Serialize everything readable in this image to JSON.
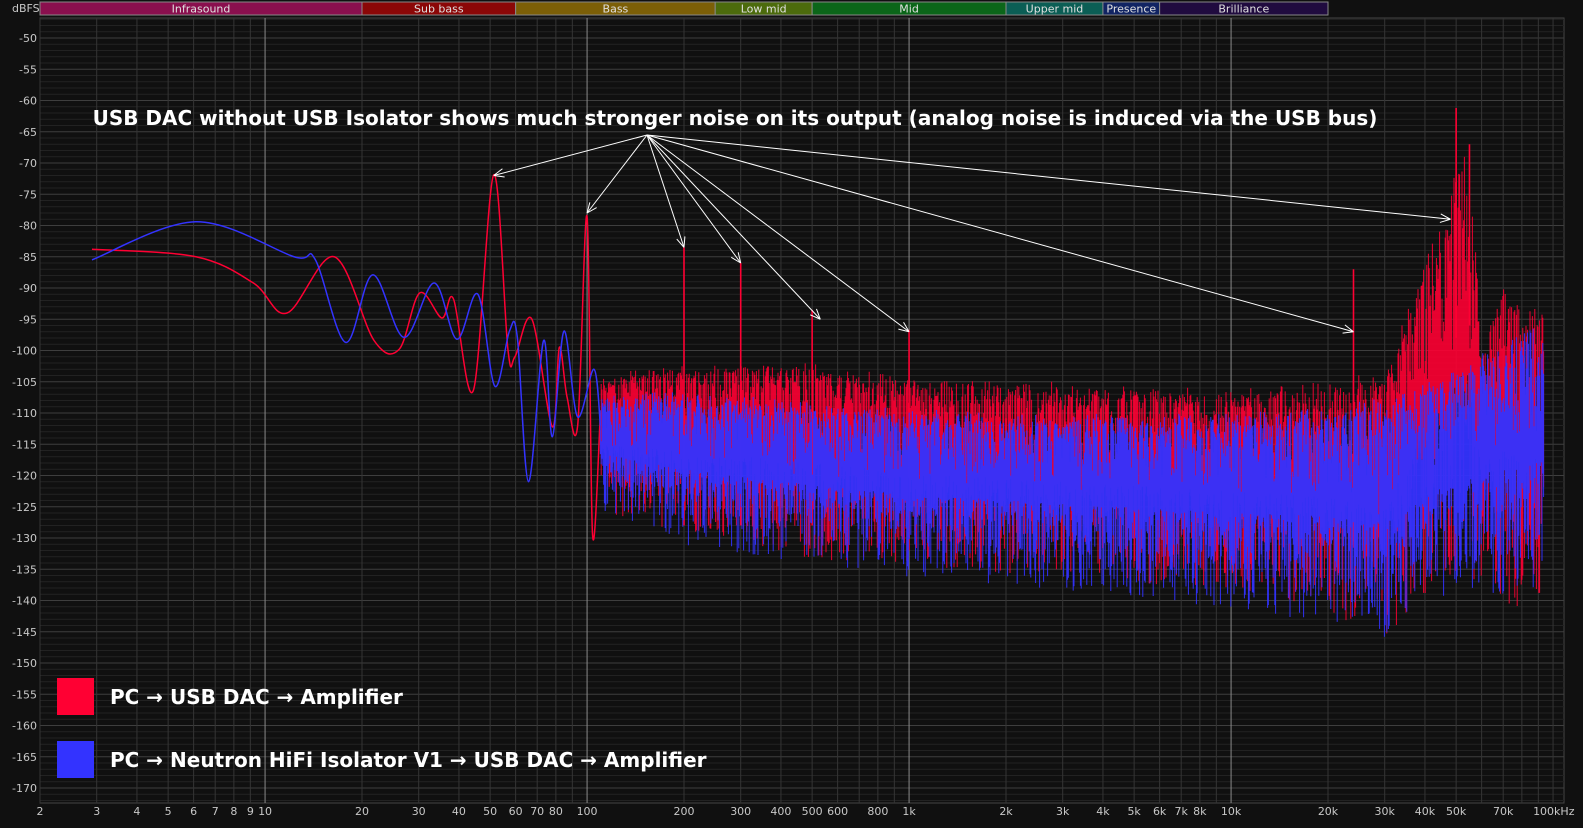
{
  "chart_data": {
    "type": "line",
    "title": "",
    "ylabel": "dBFS",
    "xunit": "Hz",
    "xscale": "log",
    "xlim": [
      2,
      110000
    ],
    "ylim": [
      -172,
      -47
    ],
    "grid": true,
    "legend_placement": "bottom-left",
    "background": "#101010",
    "yticks": [
      -50,
      -55,
      -60,
      -65,
      -70,
      -75,
      -80,
      -85,
      -90,
      -95,
      -100,
      -105,
      -110,
      -115,
      -120,
      -125,
      -130,
      -135,
      -140,
      -145,
      -150,
      -155,
      -160,
      -165,
      -170
    ],
    "xticks": [
      {
        "v": 2,
        "label": "2"
      },
      {
        "v": 3,
        "label": "3"
      },
      {
        "v": 4,
        "label": "4"
      },
      {
        "v": 5,
        "label": "5"
      },
      {
        "v": 6,
        "label": "6"
      },
      {
        "v": 7,
        "label": "7"
      },
      {
        "v": 8,
        "label": "8"
      },
      {
        "v": 9,
        "label": "9"
      },
      {
        "v": 10,
        "label": "10"
      },
      {
        "v": 20,
        "label": "20"
      },
      {
        "v": 30,
        "label": "30"
      },
      {
        "v": 40,
        "label": "40"
      },
      {
        "v": 50,
        "label": "50"
      },
      {
        "v": 60,
        "label": "60"
      },
      {
        "v": 70,
        "label": "70"
      },
      {
        "v": 80,
        "label": "80"
      },
      {
        "v": 100,
        "label": "100"
      },
      {
        "v": 200,
        "label": "200"
      },
      {
        "v": 300,
        "label": "300"
      },
      {
        "v": 400,
        "label": "400"
      },
      {
        "v": 500,
        "label": "500"
      },
      {
        "v": 600,
        "label": "600"
      },
      {
        "v": 800,
        "label": "800"
      },
      {
        "v": 1000,
        "label": "1k"
      },
      {
        "v": 2000,
        "label": "2k"
      },
      {
        "v": 3000,
        "label": "3k"
      },
      {
        "v": 4000,
        "label": "4k"
      },
      {
        "v": 5000,
        "label": "5k"
      },
      {
        "v": 6000,
        "label": "6k"
      },
      {
        "v": 7000,
        "label": "7k"
      },
      {
        "v": 8000,
        "label": "8k"
      },
      {
        "v": 10000,
        "label": "10k"
      },
      {
        "v": 20000,
        "label": "20k"
      },
      {
        "v": 30000,
        "label": "30k"
      },
      {
        "v": 40000,
        "label": "40k"
      },
      {
        "v": 50000,
        "label": "50k"
      },
      {
        "v": 70000,
        "label": "70k"
      },
      {
        "v": 100000,
        "label": "100kHz"
      }
    ],
    "bands": [
      {
        "label": "Infrasound",
        "from": 2,
        "to": 20,
        "color": "#8a0f4e"
      },
      {
        "label": "Sub bass",
        "from": 20,
        "to": 60,
        "color": "#8b0707"
      },
      {
        "label": "Bass",
        "from": 60,
        "to": 250,
        "color": "#7c5f07"
      },
      {
        "label": "Low mid",
        "from": 250,
        "to": 500,
        "color": "#4c6b0c"
      },
      {
        "label": "Mid",
        "from": 500,
        "to": 2000,
        "color": "#0b6619"
      },
      {
        "label": "Upper mid",
        "from": 2000,
        "to": 4000,
        "color": "#0b5e55"
      },
      {
        "label": "Presence",
        "from": 4000,
        "to": 6000,
        "color": "#112463"
      },
      {
        "label": "Brilliance",
        "from": 6000,
        "to": 20000,
        "color": "#200b3f"
      }
    ],
    "series": [
      {
        "name": "PC → USB DAC → Amplifier",
        "color": "#ff0033",
        "points": [
          [
            2.9,
            -83.8
          ],
          [
            6.1,
            -85
          ],
          [
            9.2,
            -89.2
          ],
          [
            11.7,
            -94
          ],
          [
            16.4,
            -85
          ],
          [
            21.8,
            -98.4
          ],
          [
            26.1,
            -99.8
          ],
          [
            30.2,
            -90.8
          ],
          [
            35.4,
            -94.8
          ],
          [
            38.5,
            -91.8
          ],
          [
            44.4,
            -106.3
          ],
          [
            51.3,
            -71.9
          ],
          [
            56.8,
            -99.9
          ],
          [
            59.7,
            -101
          ],
          [
            67.4,
            -95
          ],
          [
            78,
            -112.2
          ],
          [
            82,
            -99.5
          ],
          [
            86.7,
            -107.5
          ],
          [
            93.5,
            -112
          ],
          [
            100,
            -78.6
          ],
          [
            104,
            -129.5
          ],
          [
            110,
            -110
          ]
        ],
        "noise": {
          "f": [
            110,
            200,
            500,
            1000,
            3000,
            10000,
            20000,
            30000,
            35000,
            40000,
            45000,
            50000,
            55000,
            60000,
            70000,
            80000,
            100000
          ],
          "top": [
            -105,
            -104,
            -104,
            -106,
            -107,
            -108,
            -107,
            -106,
            -97,
            -88,
            -84,
            -74,
            -72,
            -102,
            -92,
            -96,
            -95
          ],
          "bottom": [
            -125,
            -128,
            -132,
            -133,
            -135,
            -137,
            -140,
            -145,
            -140,
            -137,
            -135,
            -135,
            -135,
            -135,
            -138,
            -140,
            -138
          ]
        },
        "peaks": [
          [
            200,
            -83.5
          ],
          [
            300,
            -86
          ],
          [
            500,
            -93.5
          ],
          [
            1000,
            -96.7
          ],
          [
            24000,
            -87
          ],
          [
            50000,
            -61.2
          ],
          [
            55000,
            -67
          ]
        ]
      },
      {
        "name": "PC → Neutron HiFi Isolator V1 → USB DAC → Amplifier",
        "color": "#3333ff",
        "points": [
          [
            2.9,
            -85.5
          ],
          [
            6.1,
            -79.4
          ],
          [
            12.3,
            -85
          ],
          [
            14.3,
            -85.4
          ],
          [
            17.8,
            -98.7
          ],
          [
            21.6,
            -87.9
          ],
          [
            27,
            -97.9
          ],
          [
            33.5,
            -89.2
          ],
          [
            39.4,
            -98.2
          ],
          [
            45.8,
            -91
          ],
          [
            51.7,
            -105.7
          ],
          [
            57.4,
            -96.9
          ],
          [
            60.7,
            -97.8
          ],
          [
            65.8,
            -121
          ],
          [
            73.3,
            -98.4
          ],
          [
            78,
            -113.8
          ],
          [
            84.8,
            -96.9
          ],
          [
            93.4,
            -110.6
          ],
          [
            105,
            -103
          ],
          [
            110,
            -112
          ]
        ],
        "noise": {
          "f": [
            110,
            200,
            500,
            1000,
            3000,
            10000,
            20000,
            30000,
            35000,
            40000,
            45000,
            50000,
            55000,
            60000,
            70000,
            80000,
            100000
          ],
          "top": [
            -108,
            -108,
            -110,
            -111,
            -112,
            -112,
            -111,
            -110,
            -109,
            -107,
            -106,
            -105,
            -104,
            -103,
            -100,
            -99,
            -98
          ],
          "bottom": [
            -125,
            -130,
            -133,
            -135,
            -137,
            -140,
            -142,
            -145,
            -143,
            -140,
            -138,
            -138,
            -137,
            -136,
            -138,
            -138,
            -135
          ]
        },
        "peaks": []
      }
    ],
    "annotation": {
      "text": "USB DAC without USB Isolator shows much stronger noise on its output (analog noise is induced via the USB bus)",
      "arrow_color": "#ffffff",
      "arrow_targets": [
        [
          51.3,
          -72
        ],
        [
          100,
          -78
        ],
        [
          200,
          -83.5
        ],
        [
          300,
          -86
        ],
        [
          530,
          -95
        ],
        [
          1000,
          -97
        ],
        [
          48000,
          -79
        ],
        [
          24000,
          -97
        ]
      ]
    }
  }
}
